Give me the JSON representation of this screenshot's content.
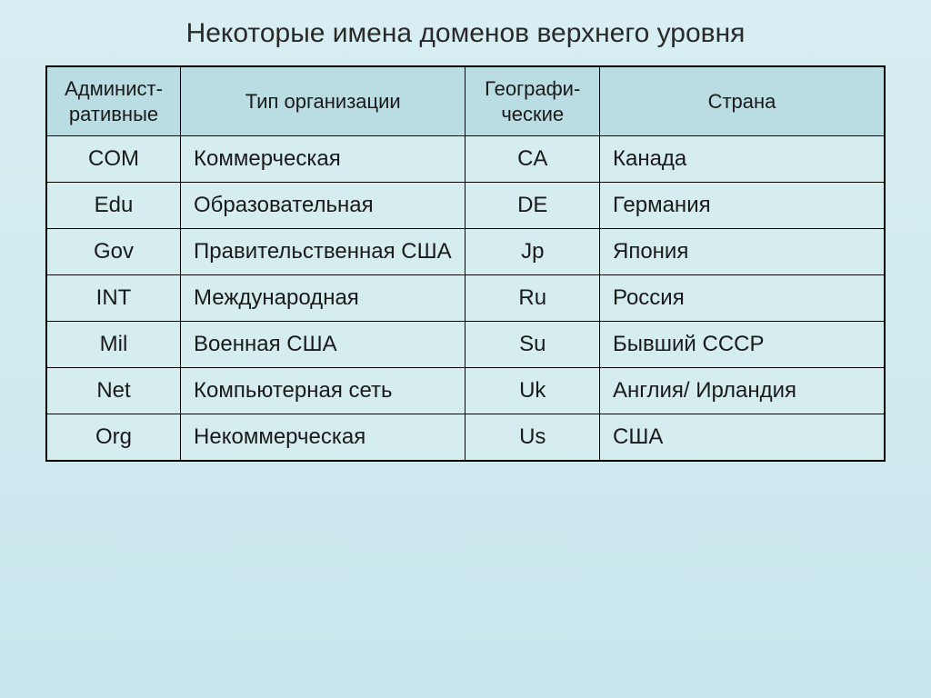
{
  "title": "Некоторые имена доменов верхнего уровня",
  "table": {
    "columns": [
      "Админист-ративные",
      "Тип организации",
      "Географи-ческие",
      "Страна"
    ],
    "rows": [
      [
        "COM",
        "Коммерческая",
        "CA",
        "Канада"
      ],
      [
        "Edu",
        "Образовательная",
        "DE",
        "Германия"
      ],
      [
        "Gov",
        "Правительственная США",
        "Jp",
        "Япония"
      ],
      [
        "INT",
        "Международная",
        "Ru",
        "Россия"
      ],
      [
        "Mil",
        "Военная США",
        "Su",
        "Бывший СССР"
      ],
      [
        "Net",
        "Компьютерная сеть",
        "Uk",
        "Англия/ Ирландия"
      ],
      [
        "Org",
        "Некоммерческая",
        "Us",
        "США"
      ]
    ],
    "header_bg": "#b9dde3",
    "cell_bg": "#d6edf0",
    "page_bg_top": "#d8eef2",
    "page_bg_bottom": "#c8e6ec",
    "border_color": "#000000",
    "title_fontsize": 30,
    "header_fontsize": 22,
    "cell_fontsize": 24
  }
}
